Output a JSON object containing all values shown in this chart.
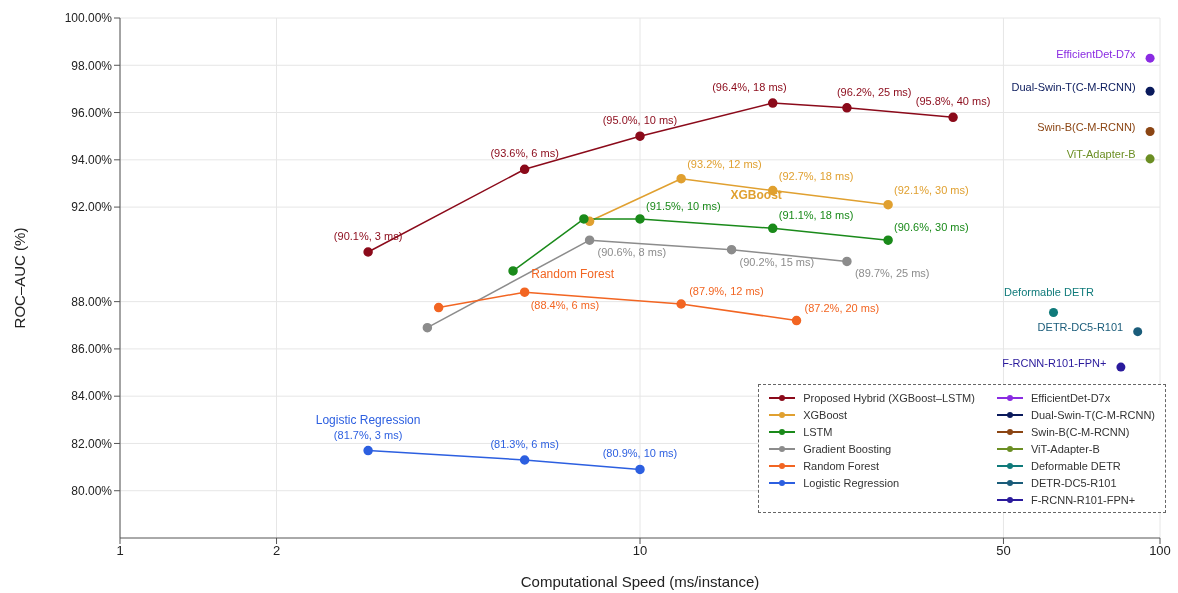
{
  "chart_data": {
    "type": "line",
    "xlabel": "Computational Speed (ms/instance)",
    "ylabel": "ROC–AUC (%)",
    "log": "x",
    "grid": true,
    "legend": "bottom right",
    "marker": "circle",
    "xlim": [
      1,
      100
    ],
    "xticks": [
      1,
      2,
      10,
      50,
      100
    ],
    "ylim": [
      78,
      100
    ],
    "yticks": [
      {
        "value": 80,
        "label": "80.00%"
      },
      {
        "value": 82,
        "label": "82.00%"
      },
      {
        "value": 84,
        "label": "84.00%"
      },
      {
        "value": 86,
        "label": "86.00%"
      },
      {
        "value": 88,
        "label": "88.00%"
      },
      {
        "value": 92,
        "label": "92.00%"
      },
      {
        "value": 94,
        "label": "94.00%"
      },
      {
        "value": 96,
        "label": "96.00%"
      },
      {
        "value": 98,
        "label": "98.00%"
      },
      {
        "value": 100,
        "label": "100.00%"
      }
    ],
    "annotations": [
      "XGBoost",
      "Random Forest",
      "Logistic Regression"
    ],
    "series": [
      {
        "name": "Proposed Hybrid (XGBoost–LSTM)",
        "color": "#8b0a1a",
        "x": [
          3,
          6,
          10,
          18,
          25,
          40
        ],
        "values": [
          90.1,
          93.6,
          95.0,
          96.4,
          96.2,
          95.8
        ],
        "value_labels": [
          "(90.1%, 3 ms)",
          "(93.6%, 6 ms)",
          "(95.0%, 10 ms)",
          "(96.4%, 18 ms)",
          "(96.2%, 25 ms)",
          "(95.8%, 40 ms)"
        ]
      },
      {
        "name": "XGBoost",
        "color": "#e0a030",
        "x": [
          8.0,
          12,
          18,
          30
        ],
        "values": [
          91.4,
          93.2,
          92.7,
          92.1
        ],
        "value_labels": [
          null,
          "(93.2%, 12 ms)",
          "(92.7%, 18 ms)",
          "(92.1%, 30 ms)"
        ]
      },
      {
        "name": "LSTM",
        "color": "#1a8a1a",
        "x": [
          5.7,
          7.8,
          10,
          18,
          30
        ],
        "values": [
          89.3,
          91.5,
          91.5,
          91.1,
          90.6
        ],
        "value_labels": [
          null,
          null,
          "(91.5%, 10 ms)",
          "(91.1%, 18 ms)",
          "(90.6%, 30 ms)"
        ]
      },
      {
        "name": "Gradient Boosting",
        "color": "#8c8c8c",
        "x": [
          3.9,
          8,
          15,
          25
        ],
        "values": [
          86.9,
          90.6,
          90.2,
          89.7
        ],
        "value_labels": [
          null,
          "(90.6%, 8 ms)",
          "(90.2%, 15 ms)",
          "(89.7%, 25 ms)"
        ]
      },
      {
        "name": "Random Forest",
        "color": "#f26522",
        "x": [
          4.1,
          6,
          12,
          20
        ],
        "values": [
          87.75,
          88.4,
          87.9,
          87.2
        ],
        "value_labels": [
          null,
          "(88.4%, 6 ms)",
          "(87.9%, 12 ms)",
          "(87.2%, 20 ms)"
        ]
      },
      {
        "name": "Logistic Regression",
        "color": "#2c5fe0",
        "x": [
          3,
          6,
          10
        ],
        "values": [
          81.7,
          81.3,
          80.9
        ],
        "value_labels": [
          "(81.7%, 3 ms)",
          "(81.3%, 6 ms)",
          "(80.9%, 10 ms)"
        ]
      },
      {
        "type": "scatter",
        "name": "EfficientDet-D7x",
        "color": "#8a2be2",
        "x": [
          95.7
        ],
        "values": [
          98.3
        ]
      },
      {
        "type": "scatter",
        "name": "Dual-Swin-T(C-M-RCNN)",
        "color": "#0a1a5c",
        "x": [
          95.7
        ],
        "values": [
          96.9
        ]
      },
      {
        "type": "scatter",
        "name": "Swin-B(C-M-RCNN)",
        "color": "#8b4513",
        "x": [
          95.7
        ],
        "values": [
          95.2
        ]
      },
      {
        "type": "scatter",
        "name": "ViT-Adapter-B",
        "color": "#6b8e23",
        "x": [
          95.7
        ],
        "values": [
          94.04
        ]
      },
      {
        "type": "scatter",
        "name": "Deformable DETR",
        "color": "#0f7a7a",
        "x": [
          62.4
        ],
        "values": [
          87.54
        ]
      },
      {
        "type": "scatter",
        "name": "DETR-DC5-R101",
        "color": "#1a5c7a",
        "x": [
          90.6
        ],
        "values": [
          86.73
        ]
      },
      {
        "type": "scatter",
        "name": "F-RCNN-R101-FPN+",
        "color": "#2a1a9c",
        "x": [
          84.1
        ],
        "values": [
          85.23
        ]
      }
    ]
  }
}
